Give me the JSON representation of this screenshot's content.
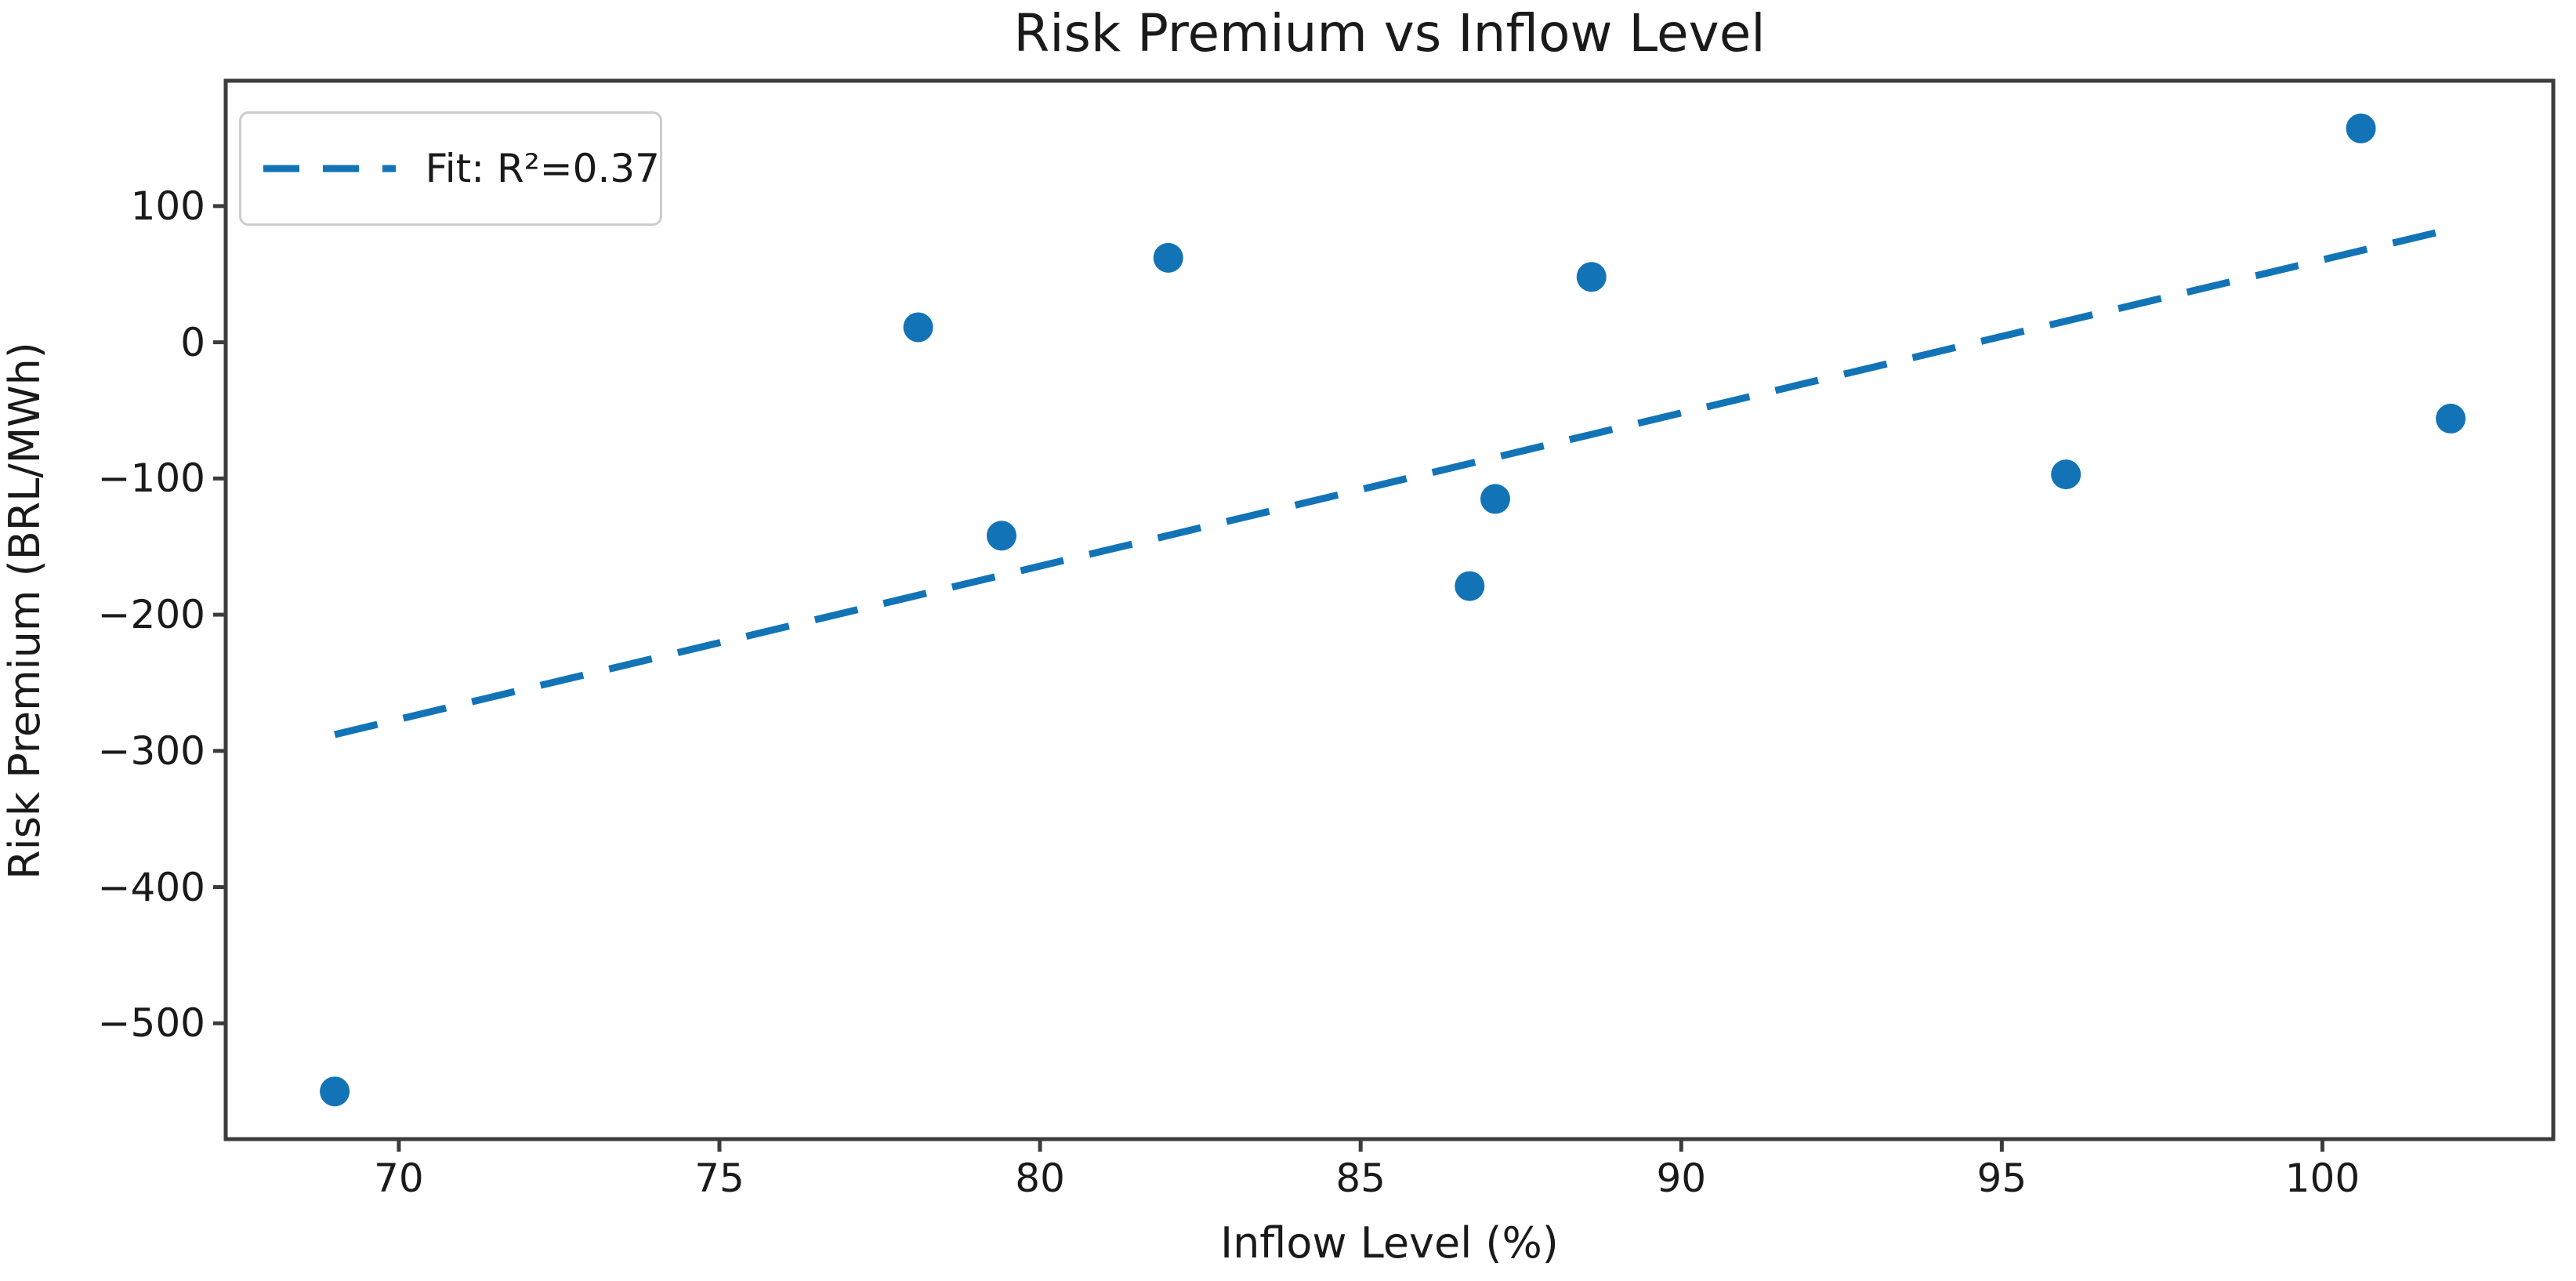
{
  "chart_data": {
    "type": "scatter",
    "title": "Risk Premium vs Inflow Level",
    "xlabel": "Inflow Level (%)",
    "ylabel": "Risk Premium (BRL/MWh)",
    "points": [
      {
        "x": 69.0,
        "y": -550
      },
      {
        "x": 78.1,
        "y": 11
      },
      {
        "x": 79.4,
        "y": -142
      },
      {
        "x": 82.0,
        "y": 62
      },
      {
        "x": 86.7,
        "y": -179
      },
      {
        "x": 87.1,
        "y": -115
      },
      {
        "x": 88.6,
        "y": 48
      },
      {
        "x": 96.0,
        "y": -97
      },
      {
        "x": 100.6,
        "y": 157
      },
      {
        "x": 102.0,
        "y": -56
      }
    ],
    "fit_line": {
      "x1": 69.0,
      "y1": -288,
      "x2": 102.0,
      "y2": 83,
      "r_squared": 0.37,
      "style": "dashed"
    },
    "legend": {
      "label": "Fit: R²=0.37",
      "position": "upper left"
    },
    "xlim": [
      67.3,
      103.6
    ],
    "ylim": [
      -585,
      192
    ],
    "xticks": [
      70,
      75,
      80,
      85,
      90,
      95,
      100
    ],
    "yticks": [
      100,
      0,
      -100,
      -200,
      -300,
      -400,
      -500
    ],
    "grid": false,
    "legend_visible": true,
    "colors": {
      "series": "#1274b6",
      "text": "#1a1a1a",
      "spine": "#3c3c3c",
      "legend_border": "#cccccc"
    },
    "marker": {
      "shape": "circle",
      "radius_px": 19
    }
  }
}
